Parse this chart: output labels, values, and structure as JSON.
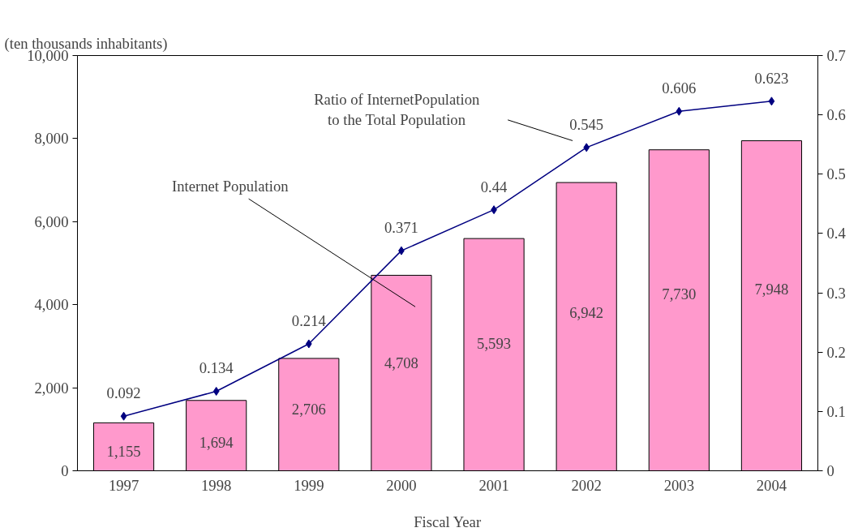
{
  "chart_data": {
    "type": "bar",
    "ylabel": "(ten thousands inhabitants)",
    "xlabel": "Fiscal Year",
    "categories": [
      "1997",
      "1998",
      "1999",
      "2000",
      "2001",
      "2002",
      "2003",
      "2004"
    ],
    "series": [
      {
        "color": "#ff99cc",
        "values": [
          1155,
          1694,
          2706,
          4708,
          5593,
          6942,
          7730,
          7948
        ],
        "value_labels": [
          "1,155",
          "1,694",
          "2,706",
          "4,708",
          "5,593",
          "6,942",
          "7,730",
          "7,948"
        ]
      },
      {
        "type": "line",
        "axis": "y2",
        "color": "#000080",
        "marker": "diamond",
        "values": [
          0.092,
          0.134,
          0.214,
          0.371,
          0.44,
          0.545,
          0.606,
          0.623
        ],
        "data_labels": true
      }
    ],
    "ylim": [
      0,
      10000
    ],
    "yticks": [
      0,
      {
        "value": 2000,
        "label": "2,000"
      },
      {
        "value": 4000,
        "label": "4,000"
      },
      {
        "value": 6000,
        "label": "6,000"
      },
      {
        "value": 8000,
        "label": "8,000"
      },
      {
        "value": 10000,
        "label": "10,000"
      }
    ],
    "y2lim": [
      0,
      0.7
    ],
    "y2ticks": [
      0,
      0.1,
      0.2,
      0.3,
      0.4,
      0.5,
      0.6,
      0.7
    ],
    "grid": false,
    "annotations": [
      "Internet Population",
      "Ratio of InternetPopulation\nto the Total Population"
    ]
  }
}
